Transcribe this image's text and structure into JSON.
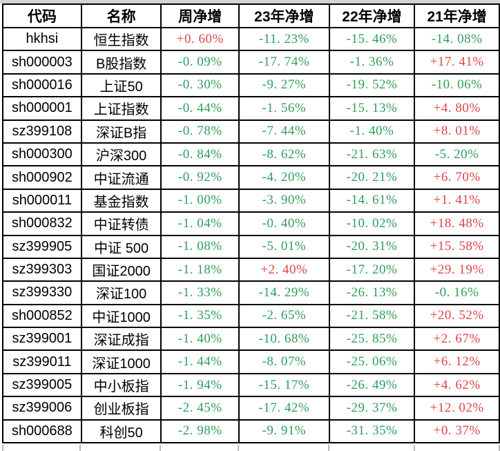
{
  "chart_data": {
    "type": "table",
    "title": "",
    "columns": [
      {
        "key": "code",
        "label": "代码"
      },
      {
        "key": "name",
        "label": "名称"
      },
      {
        "key": "week",
        "label": "周净增"
      },
      {
        "key": "y23",
        "label": "23年净增"
      },
      {
        "key": "y22",
        "label": "22年净增"
      },
      {
        "key": "y21",
        "label": "21年净增"
      }
    ],
    "colors": {
      "positive_text": "#e0444a",
      "negative_text": "#2f9e5a",
      "header_text": "#000000",
      "grid_line": "#000000",
      "outside_strip": "#d3d3d3",
      "cell_background": "#ffffff"
    },
    "rows": [
      {
        "code": "hkhsi",
        "name": "恒生指数",
        "week": "+0. 60%",
        "y23": "-11. 23%",
        "y22": "-15. 46%",
        "y21": "-14. 08%"
      },
      {
        "code": "sh000003",
        "name": "B股指数",
        "week": "-0. 09%",
        "y23": "-17. 74%",
        "y22": "-1. 36%",
        "y21": "+17. 41%"
      },
      {
        "code": "sh000016",
        "name": "上证50",
        "week": "-0. 30%",
        "y23": "-9. 27%",
        "y22": "-19. 52%",
        "y21": "-10. 06%"
      },
      {
        "code": "sh000001",
        "name": "上证指数",
        "week": "-0. 44%",
        "y23": "-1. 56%",
        "y22": "-15. 13%",
        "y21": "+4. 80%"
      },
      {
        "code": "sz399108",
        "name": "深证B指",
        "week": "-0. 78%",
        "y23": "-7. 44%",
        "y22": "-1. 40%",
        "y21": "+8. 01%"
      },
      {
        "code": "sh000300",
        "name": "沪深300",
        "week": "-0. 84%",
        "y23": "-8. 62%",
        "y22": "-21. 63%",
        "y21": "-5. 20%"
      },
      {
        "code": "sh000902",
        "name": "中证流通",
        "week": "-0. 92%",
        "y23": "-4. 20%",
        "y22": "-20. 21%",
        "y21": "+6. 70%"
      },
      {
        "code": "sh000011",
        "name": "基金指数",
        "week": "-1. 00%",
        "y23": "-3. 90%",
        "y22": "-14. 61%",
        "y21": "+1. 41%"
      },
      {
        "code": "sh000832",
        "name": "中证转债",
        "week": "-1. 04%",
        "y23": "-0. 40%",
        "y22": "-10. 02%",
        "y21": "+18. 48%"
      },
      {
        "code": "sz399905",
        "name": "中证 500",
        "week": "-1. 08%",
        "y23": "-5. 01%",
        "y22": "-20. 31%",
        "y21": "+15. 58%"
      },
      {
        "code": "sz399303",
        "name": "国证2000",
        "week": "-1. 18%",
        "y23": "+2. 40%",
        "y22": "-17. 20%",
        "y21": "+29. 19%"
      },
      {
        "code": "sz399330",
        "name": "深证100",
        "week": "-1. 33%",
        "y23": "-14. 29%",
        "y22": "-26. 13%",
        "y21": "-0. 16%"
      },
      {
        "code": "sh000852",
        "name": "中证1000",
        "week": "-1. 35%",
        "y23": "-2. 65%",
        "y22": "-21. 58%",
        "y21": "+20. 52%"
      },
      {
        "code": "sz399001",
        "name": "深证成指",
        "week": "-1. 40%",
        "y23": "-10. 68%",
        "y22": "-25. 85%",
        "y21": "+2. 67%"
      },
      {
        "code": "sz399011",
        "name": "深证1000",
        "week": "-1. 44%",
        "y23": "-8. 07%",
        "y22": "-25. 06%",
        "y21": "+6. 12%"
      },
      {
        "code": "sz399005",
        "name": "中小板指",
        "week": "-1. 94%",
        "y23": "-15. 17%",
        "y22": "-26. 49%",
        "y21": "+4. 62%"
      },
      {
        "code": "sz399006",
        "name": "创业板指",
        "week": "-2. 45%",
        "y23": "-17. 42%",
        "y22": "-29. 37%",
        "y21": "+12. 02%"
      },
      {
        "code": "sh000688",
        "name": "科创50",
        "week": "-2. 98%",
        "y23": "-9. 91%",
        "y22": "-31. 35%",
        "y21": "+0. 37%"
      }
    ]
  }
}
